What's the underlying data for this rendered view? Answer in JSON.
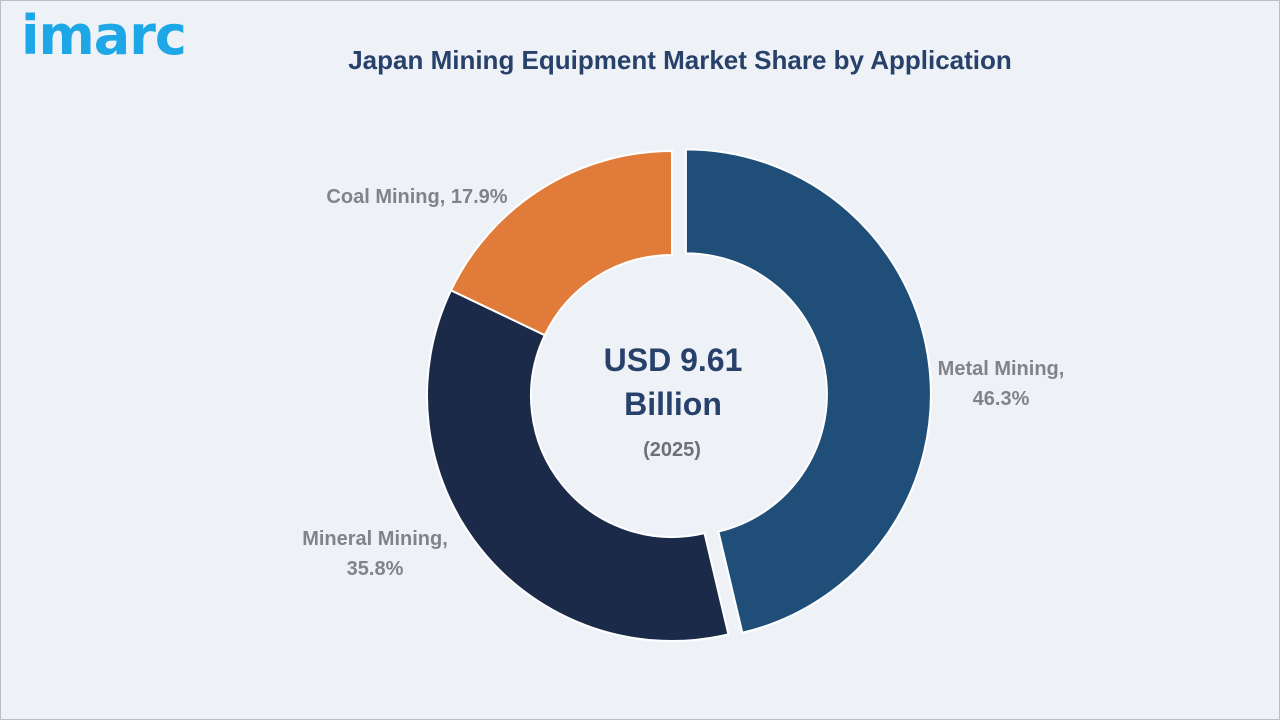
{
  "brand": {
    "logo_text": "imarc",
    "logo_color": "#1ea7e6"
  },
  "chart_data": {
    "type": "pie",
    "title": "Japan Mining Equipment Market Share by Application",
    "center_label": {
      "line1": "USD 9.61",
      "line2": "Billion",
      "year": "(2025)"
    },
    "unit": "%",
    "series": [
      {
        "name": "Metal Mining",
        "value": 46.3,
        "label": "Metal Mining,\n46.3%",
        "color": "#1f4e79"
      },
      {
        "name": "Mineral Mining",
        "value": 35.8,
        "label": "Mineral Mining,\n35.8%",
        "color": "#1c2a4a"
      },
      {
        "name": "Coal Mining",
        "value": 17.9,
        "label": "Coal Mining, 17.9%",
        "color": "#e07b39"
      }
    ],
    "style": "donut",
    "legend": "none",
    "exploded": "Metal Mining"
  }
}
